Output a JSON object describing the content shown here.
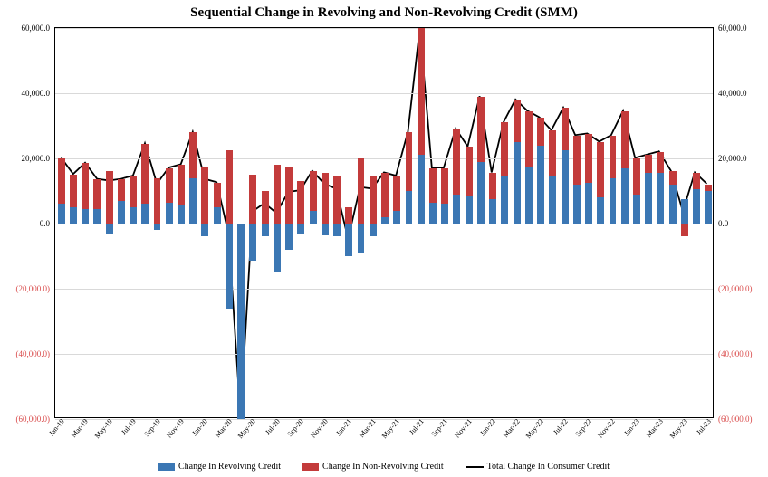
{
  "chart": {
    "type": "stacked-bar-with-line",
    "title": "Sequential Change in Revolving and Non-Revolving Credit (SMM)",
    "title_fontsize": 15,
    "background_color": "#ffffff",
    "grid_color": "#d9d9d9",
    "bar_width_ratio": 0.6,
    "ylim": [
      -60000,
      60000
    ],
    "ytick_step": 20000,
    "yticks": [
      {
        "v": 60000,
        "label": "60,000.0"
      },
      {
        "v": 40000,
        "label": "40,000.0"
      },
      {
        "v": 20000,
        "label": "20,000.0"
      },
      {
        "v": 0,
        "label": "0.0"
      },
      {
        "v": -20000,
        "label": "(20,000.0)",
        "neg": true
      },
      {
        "v": -40000,
        "label": "(40,000.0)",
        "neg": true
      },
      {
        "v": -60000,
        "label": "(60,000.0)",
        "neg": true
      }
    ],
    "tick_fontsize": 9,
    "tick_color_pos": "#000000",
    "tick_color_neg": "#d94a4a",
    "colors": {
      "revolving": "#3b77b4",
      "nonrevolving": "#c33b3b",
      "total_line": "#000000"
    },
    "line_width": 1.8,
    "categories": [
      "Jan-19",
      "",
      "Mar-19",
      "",
      "May-19",
      "",
      "Jul-19",
      "",
      "Sep-19",
      "",
      "Nov-19",
      "",
      "Jan-20",
      "",
      "Mar-20",
      "",
      "May-20",
      "",
      "Jul-20",
      "",
      "Sep-20",
      "",
      "Nov-20",
      "",
      "Jan-21",
      "",
      "Mar-21",
      "",
      "May-21",
      "",
      "Jul-21",
      "",
      "Sep-21",
      "",
      "Nov-21",
      "",
      "Jan-22",
      "",
      "Mar-22",
      "",
      "May-22",
      "",
      "Jul-22",
      "",
      "Sep-22",
      "",
      "Nov-22",
      "",
      "Jan-23",
      "",
      "Mar-23",
      "",
      "May-23",
      "",
      "Jul-23"
    ],
    "category_label_rotation": -50,
    "category_label_fontsize": 8,
    "show_every_label": true,
    "revolving": [
      6000,
      5000,
      4500,
      4500,
      -3000,
      7000,
      5000,
      6000,
      -2000,
      6500,
      5500,
      14000,
      -4000,
      5000,
      -26000,
      -60000,
      -11500,
      -4000,
      -15000,
      -8000,
      -3000,
      4000,
      -3500,
      -4000,
      -10000,
      -9000,
      -4000,
      2000,
      4000,
      10000,
      21000,
      6500,
      6000,
      9000,
      8500,
      19000,
      7500,
      14500,
      25000,
      17500,
      24000,
      14500,
      22500,
      12000,
      12500,
      8000,
      14000,
      17000,
      9000,
      15500,
      15500,
      12000,
      7500,
      10500,
      10000
    ],
    "nonrevolving": [
      14000,
      10000,
      14000,
      9000,
      16000,
      6500,
      9500,
      18500,
      14000,
      10500,
      12500,
      14000,
      17500,
      7500,
      22500,
      0,
      15000,
      10000,
      18000,
      17500,
      13000,
      12000,
      15500,
      14500,
      5000,
      20000,
      14500,
      13500,
      10500,
      18000,
      39000,
      10500,
      11000,
      20000,
      15000,
      20000,
      8000,
      16500,
      13000,
      17000,
      8500,
      14000,
      13000,
      15000,
      15000,
      17000,
      13000,
      17500,
      11000,
      5500,
      6500,
      4000,
      -4000,
      5000,
      2000
    ],
    "legend": {
      "items": [
        {
          "label": "Change In Revolving Credit",
          "type": "swatch",
          "color": "#3b77b4"
        },
        {
          "label": "Change In Non-Revolving Credit",
          "type": "swatch",
          "color": "#c33b3b"
        },
        {
          "label": "Total Change In Consumer Credit",
          "type": "line",
          "color": "#000000"
        }
      ]
    }
  }
}
